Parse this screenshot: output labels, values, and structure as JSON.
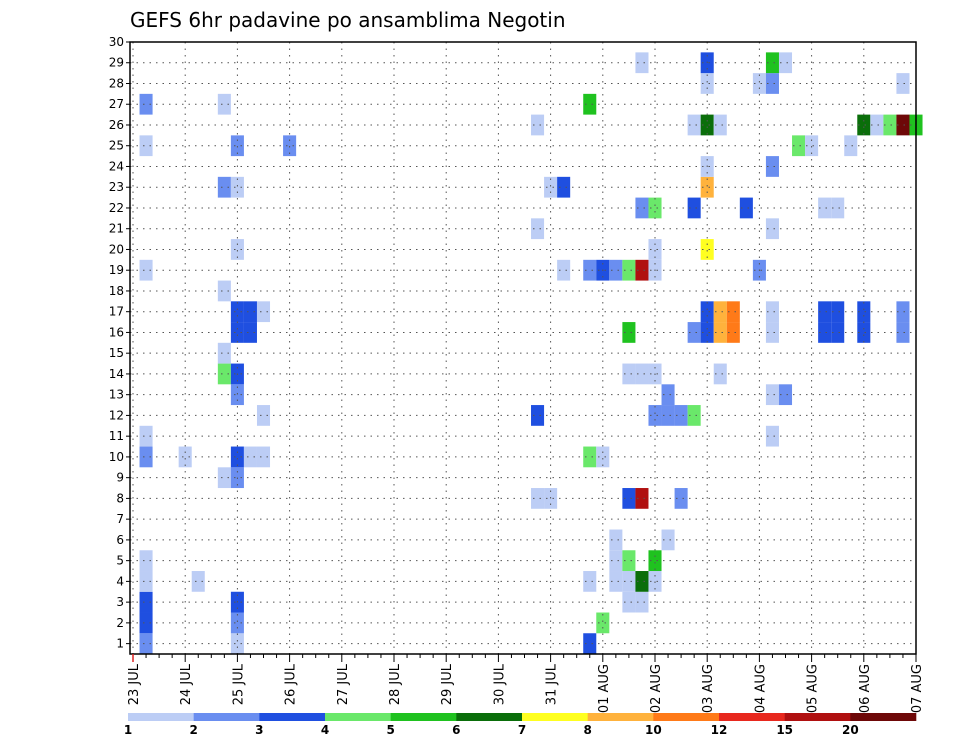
{
  "chart_data": {
    "type": "heatmap",
    "title": "GEFS 6hr padavine po ansamblima Negotin",
    "xlabel": "",
    "ylabel": "",
    "x_ticks": [
      "23 JUL",
      "24 JUL",
      "25 JUL",
      "26 JUL",
      "27 JUL",
      "28 JUL",
      "29 JUL",
      "30 JUL",
      "31 JUL",
      "01 AUG",
      "02 AUG",
      "03 AUG",
      "04 AUG",
      "05 AUG",
      "06 AUG",
      "07 AUG"
    ],
    "x_range": [
      0,
      60
    ],
    "y_range": [
      0.5,
      30
    ],
    "y_ticks": [
      1,
      2,
      3,
      4,
      5,
      6,
      7,
      8,
      9,
      10,
      11,
      12,
      13,
      14,
      15,
      16,
      17,
      18,
      19,
      20,
      21,
      22,
      23,
      24,
      25,
      26,
      27,
      28,
      29,
      30
    ],
    "grid": true,
    "colorbar": {
      "levels": [
        "1",
        "2",
        "3",
        "4",
        "5",
        "6",
        "7",
        "8",
        "10",
        "12",
        "15",
        "20"
      ],
      "colors": [
        "#bccdf5",
        "#6a8ef0",
        "#1f4fe0",
        "#6ae86a",
        "#1fc21f",
        "#0a6e0a",
        "#ffff20",
        "#ffb23c",
        "#ff7a18",
        "#e8281e",
        "#b01010",
        "#6e0808"
      ]
    },
    "cells": [
      [
        1,
        1,
        1
      ],
      [
        1,
        2,
        2
      ],
      [
        1,
        3,
        2
      ],
      [
        1,
        4,
        0
      ],
      [
        1,
        5,
        0
      ],
      [
        1,
        10,
        1
      ],
      [
        1,
        11,
        0
      ],
      [
        1,
        19,
        0
      ],
      [
        1,
        25,
        0
      ],
      [
        1,
        27,
        1
      ],
      [
        4,
        10,
        0
      ],
      [
        5,
        4,
        0
      ],
      [
        7,
        9,
        0
      ],
      [
        7,
        14,
        3
      ],
      [
        7,
        15,
        0
      ],
      [
        7,
        18,
        0
      ],
      [
        7,
        23,
        1
      ],
      [
        7,
        27,
        0
      ],
      [
        8,
        1,
        0
      ],
      [
        8,
        2,
        1
      ],
      [
        8,
        3,
        2
      ],
      [
        8,
        9,
        1
      ],
      [
        8,
        10,
        2
      ],
      [
        8,
        13,
        1
      ],
      [
        8,
        14,
        2
      ],
      [
        8,
        16,
        2
      ],
      [
        8,
        17,
        2
      ],
      [
        8,
        20,
        0
      ],
      [
        8,
        23,
        0
      ],
      [
        8,
        25,
        1
      ],
      [
        9,
        10,
        0
      ],
      [
        9,
        16,
        2
      ],
      [
        9,
        17,
        2
      ],
      [
        10,
        10,
        0
      ],
      [
        10,
        17,
        0
      ],
      [
        10,
        12,
        0
      ],
      [
        12,
        25,
        1
      ],
      [
        31,
        8,
        0
      ],
      [
        31,
        12,
        2
      ],
      [
        31,
        21,
        0
      ],
      [
        31,
        26,
        0
      ],
      [
        32,
        8,
        0
      ],
      [
        32,
        23,
        0
      ],
      [
        33,
        19,
        0
      ],
      [
        33,
        23,
        2
      ],
      [
        35,
        1,
        2
      ],
      [
        35,
        4,
        0
      ],
      [
        35,
        10,
        3
      ],
      [
        35,
        19,
        1
      ],
      [
        35,
        27,
        4
      ],
      [
        36,
        2,
        3
      ],
      [
        36,
        10,
        0
      ],
      [
        36,
        19,
        2
      ],
      [
        37,
        4,
        0
      ],
      [
        37,
        5,
        0
      ],
      [
        37,
        6,
        0
      ],
      [
        37,
        19,
        1
      ],
      [
        38,
        3,
        0
      ],
      [
        38,
        4,
        0
      ],
      [
        38,
        5,
        3
      ],
      [
        38,
        8,
        2
      ],
      [
        38,
        14,
        0
      ],
      [
        38,
        16,
        4
      ],
      [
        38,
        19,
        3
      ],
      [
        39,
        3,
        0
      ],
      [
        39,
        4,
        5
      ],
      [
        39,
        8,
        10
      ],
      [
        39,
        14,
        0
      ],
      [
        39,
        19,
        10
      ],
      [
        39,
        22,
        1
      ],
      [
        39,
        29,
        0
      ],
      [
        40,
        4,
        0
      ],
      [
        40,
        5,
        4
      ],
      [
        40,
        12,
        1
      ],
      [
        40,
        14,
        0
      ],
      [
        40,
        19,
        0
      ],
      [
        40,
        20,
        0
      ],
      [
        40,
        22,
        3
      ],
      [
        41,
        6,
        0
      ],
      [
        41,
        12,
        1
      ],
      [
        41,
        13,
        1
      ],
      [
        42,
        8,
        1
      ],
      [
        42,
        12,
        1
      ],
      [
        43,
        12,
        3
      ],
      [
        43,
        16,
        1
      ],
      [
        43,
        22,
        2
      ],
      [
        43,
        26,
        0
      ],
      [
        44,
        16,
        2
      ],
      [
        44,
        17,
        2
      ],
      [
        44,
        20,
        6
      ],
      [
        44,
        23,
        7
      ],
      [
        44,
        24,
        0
      ],
      [
        44,
        26,
        5
      ],
      [
        44,
        28,
        0
      ],
      [
        44,
        29,
        2
      ],
      [
        45,
        14,
        0
      ],
      [
        45,
        16,
        7
      ],
      [
        45,
        17,
        7
      ],
      [
        45,
        26,
        0
      ],
      [
        46,
        16,
        8
      ],
      [
        46,
        17,
        8
      ],
      [
        47,
        22,
        2
      ],
      [
        48,
        19,
        1
      ],
      [
        48,
        28,
        0
      ],
      [
        49,
        11,
        0
      ],
      [
        49,
        13,
        0
      ],
      [
        49,
        16,
        0
      ],
      [
        49,
        17,
        0
      ],
      [
        49,
        21,
        0
      ],
      [
        49,
        24,
        1
      ],
      [
        49,
        28,
        1
      ],
      [
        49,
        29,
        4
      ],
      [
        50,
        13,
        1
      ],
      [
        50,
        29,
        0
      ],
      [
        51,
        25,
        3
      ],
      [
        52,
        25,
        0
      ],
      [
        53,
        16,
        2
      ],
      [
        53,
        17,
        2
      ],
      [
        53,
        22,
        0
      ],
      [
        54,
        16,
        2
      ],
      [
        54,
        17,
        2
      ],
      [
        54,
        22,
        0
      ],
      [
        55,
        25,
        0
      ],
      [
        56,
        16,
        2
      ],
      [
        56,
        17,
        2
      ],
      [
        56,
        26,
        5
      ],
      [
        57,
        26,
        0
      ],
      [
        58,
        26,
        3
      ],
      [
        59,
        16,
        1
      ],
      [
        59,
        17,
        1
      ],
      [
        59,
        26,
        11
      ],
      [
        59,
        28,
        0
      ],
      [
        60,
        26,
        4
      ]
    ]
  }
}
